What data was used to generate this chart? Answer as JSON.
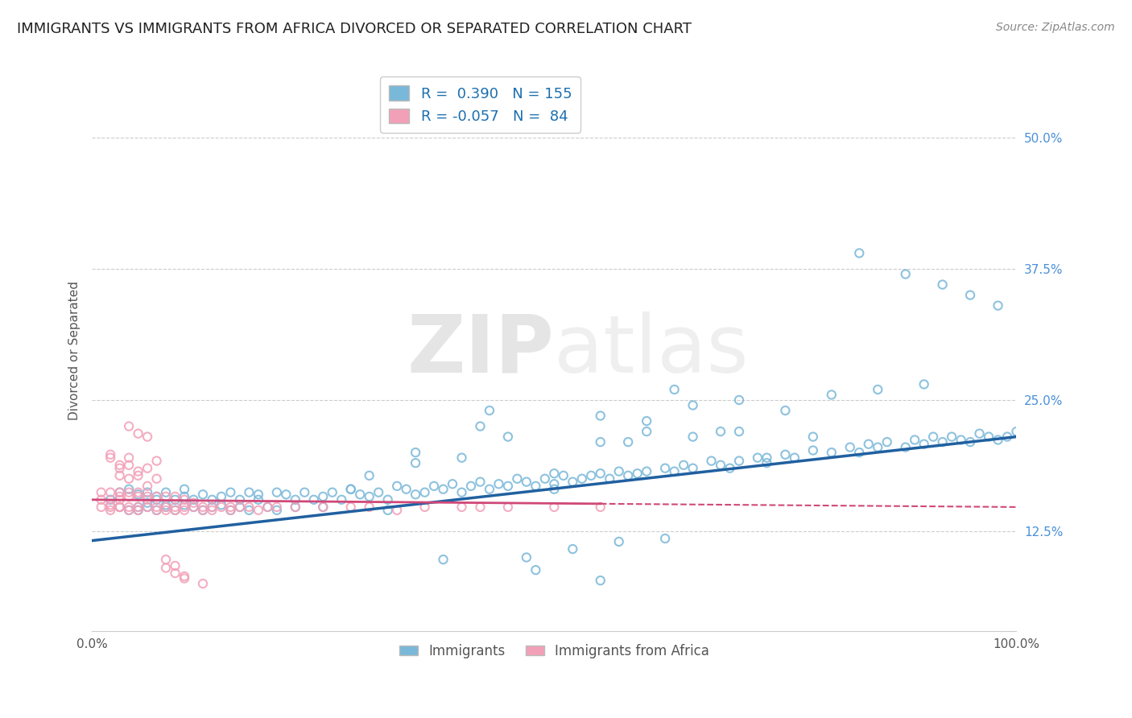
{
  "title": "IMMIGRANTS VS IMMIGRANTS FROM AFRICA DIVORCED OR SEPARATED CORRELATION CHART",
  "source": "Source: ZipAtlas.com",
  "ylabel": "Divorced or Separated",
  "xlim": [
    0,
    1.0
  ],
  "ylim": [
    0.03,
    0.565
  ],
  "yticks": [
    0.125,
    0.25,
    0.375,
    0.5
  ],
  "ytick_labels": [
    "12.5%",
    "25.0%",
    "37.5%",
    "50.0%"
  ],
  "blue_R": 0.39,
  "blue_N": 155,
  "pink_R": -0.057,
  "pink_N": 84,
  "legend_label_blue": "Immigrants",
  "legend_label_pink": "Immigrants from Africa",
  "blue_color": "#7ab8d9",
  "pink_color": "#f2a0b8",
  "blue_line_color": "#2060a0",
  "pink_line_color": "#d04878",
  "blue_line_start_y": 0.116,
  "blue_line_end_y": 0.215,
  "pink_line_start_y": 0.155,
  "pink_line_end_y": 0.148,
  "title_fontsize": 13,
  "axis_label_fontsize": 11,
  "tick_fontsize": 11,
  "source_fontsize": 10,
  "blue_scatter_x": [
    0.02,
    0.03,
    0.03,
    0.04,
    0.04,
    0.05,
    0.05,
    0.05,
    0.06,
    0.06,
    0.06,
    0.07,
    0.07,
    0.07,
    0.08,
    0.08,
    0.08,
    0.09,
    0.09,
    0.1,
    0.1,
    0.1,
    0.11,
    0.11,
    0.12,
    0.12,
    0.13,
    0.13,
    0.14,
    0.14,
    0.15,
    0.15,
    0.16,
    0.16,
    0.17,
    0.17,
    0.18,
    0.18,
    0.19,
    0.2,
    0.2,
    0.21,
    0.22,
    0.22,
    0.23,
    0.24,
    0.25,
    0.26,
    0.27,
    0.28,
    0.29,
    0.3,
    0.31,
    0.32,
    0.33,
    0.34,
    0.35,
    0.36,
    0.37,
    0.38,
    0.39,
    0.4,
    0.41,
    0.42,
    0.43,
    0.44,
    0.45,
    0.46,
    0.47,
    0.48,
    0.49,
    0.5,
    0.51,
    0.52,
    0.53,
    0.54,
    0.55,
    0.56,
    0.57,
    0.58,
    0.59,
    0.6,
    0.62,
    0.63,
    0.64,
    0.65,
    0.67,
    0.68,
    0.69,
    0.7,
    0.72,
    0.73,
    0.75,
    0.76,
    0.78,
    0.8,
    0.82,
    0.83,
    0.84,
    0.85,
    0.86,
    0.88,
    0.89,
    0.9,
    0.91,
    0.92,
    0.93,
    0.94,
    0.95,
    0.96,
    0.97,
    0.98,
    0.99,
    1.0,
    0.35,
    0.4,
    0.45,
    0.5,
    0.55,
    0.6,
    0.65,
    0.7,
    0.25,
    0.3,
    0.55,
    0.6,
    0.65,
    0.7,
    0.75,
    0.8,
    0.85,
    0.9,
    0.35,
    0.42,
    0.5,
    0.58,
    0.63,
    0.68,
    0.73,
    0.78,
    0.83,
    0.88,
    0.92,
    0.95,
    0.98,
    0.47,
    0.52,
    0.57,
    0.62,
    0.55,
    0.48,
    0.38,
    0.32,
    0.28,
    0.43
  ],
  "blue_scatter_y": [
    0.155,
    0.162,
    0.148,
    0.145,
    0.165,
    0.148,
    0.16,
    0.145,
    0.152,
    0.148,
    0.162,
    0.155,
    0.145,
    0.158,
    0.15,
    0.162,
    0.148,
    0.155,
    0.145,
    0.15,
    0.158,
    0.165,
    0.155,
    0.148,
    0.16,
    0.145,
    0.155,
    0.148,
    0.158,
    0.15,
    0.162,
    0.145,
    0.155,
    0.148,
    0.162,
    0.145,
    0.16,
    0.155,
    0.148,
    0.162,
    0.145,
    0.16,
    0.155,
    0.148,
    0.162,
    0.155,
    0.158,
    0.162,
    0.155,
    0.165,
    0.16,
    0.158,
    0.162,
    0.155,
    0.168,
    0.165,
    0.16,
    0.162,
    0.168,
    0.165,
    0.17,
    0.162,
    0.168,
    0.172,
    0.165,
    0.17,
    0.168,
    0.175,
    0.172,
    0.168,
    0.175,
    0.17,
    0.178,
    0.172,
    0.175,
    0.178,
    0.18,
    0.175,
    0.182,
    0.178,
    0.18,
    0.182,
    0.185,
    0.182,
    0.188,
    0.185,
    0.192,
    0.188,
    0.185,
    0.192,
    0.195,
    0.19,
    0.198,
    0.195,
    0.202,
    0.2,
    0.205,
    0.2,
    0.208,
    0.205,
    0.21,
    0.205,
    0.212,
    0.208,
    0.215,
    0.21,
    0.215,
    0.212,
    0.21,
    0.218,
    0.215,
    0.212,
    0.215,
    0.22,
    0.19,
    0.195,
    0.215,
    0.165,
    0.21,
    0.22,
    0.215,
    0.22,
    0.148,
    0.178,
    0.235,
    0.23,
    0.245,
    0.25,
    0.24,
    0.255,
    0.26,
    0.265,
    0.2,
    0.225,
    0.18,
    0.21,
    0.26,
    0.22,
    0.195,
    0.215,
    0.39,
    0.37,
    0.36,
    0.35,
    0.34,
    0.1,
    0.108,
    0.115,
    0.118,
    0.078,
    0.088,
    0.098,
    0.145,
    0.165,
    0.24
  ],
  "pink_scatter_x": [
    0.01,
    0.01,
    0.01,
    0.02,
    0.02,
    0.02,
    0.02,
    0.03,
    0.03,
    0.03,
    0.03,
    0.03,
    0.04,
    0.04,
    0.04,
    0.04,
    0.05,
    0.05,
    0.05,
    0.05,
    0.06,
    0.06,
    0.06,
    0.07,
    0.07,
    0.07,
    0.08,
    0.08,
    0.08,
    0.09,
    0.09,
    0.09,
    0.1,
    0.1,
    0.1,
    0.11,
    0.11,
    0.12,
    0.12,
    0.13,
    0.13,
    0.14,
    0.15,
    0.15,
    0.16,
    0.17,
    0.18,
    0.19,
    0.2,
    0.22,
    0.25,
    0.28,
    0.3,
    0.33,
    0.36,
    0.4,
    0.42,
    0.45,
    0.5,
    0.55,
    0.03,
    0.04,
    0.05,
    0.06,
    0.07,
    0.02,
    0.03,
    0.04,
    0.05,
    0.06,
    0.07,
    0.08,
    0.09,
    0.1,
    0.04,
    0.05,
    0.06,
    0.02,
    0.03,
    0.04,
    0.1,
    0.12,
    0.08,
    0.09
  ],
  "pink_scatter_y": [
    0.148,
    0.162,
    0.155,
    0.15,
    0.145,
    0.162,
    0.148,
    0.148,
    0.162,
    0.148,
    0.158,
    0.155,
    0.148,
    0.158,
    0.145,
    0.162,
    0.148,
    0.158,
    0.145,
    0.162,
    0.148,
    0.158,
    0.155,
    0.148,
    0.158,
    0.145,
    0.148,
    0.158,
    0.145,
    0.148,
    0.158,
    0.145,
    0.148,
    0.155,
    0.145,
    0.152,
    0.148,
    0.148,
    0.145,
    0.148,
    0.145,
    0.148,
    0.148,
    0.145,
    0.148,
    0.148,
    0.145,
    0.148,
    0.148,
    0.148,
    0.148,
    0.148,
    0.148,
    0.145,
    0.148,
    0.148,
    0.148,
    0.148,
    0.148,
    0.148,
    0.178,
    0.195,
    0.182,
    0.185,
    0.192,
    0.198,
    0.188,
    0.175,
    0.178,
    0.168,
    0.175,
    0.09,
    0.085,
    0.082,
    0.225,
    0.218,
    0.215,
    0.195,
    0.185,
    0.188,
    0.08,
    0.075,
    0.098,
    0.092
  ]
}
